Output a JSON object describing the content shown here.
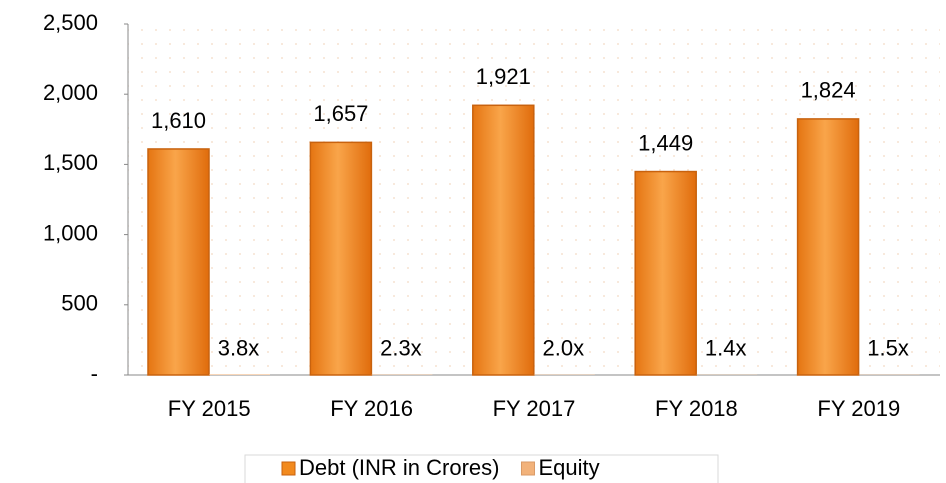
{
  "chart_data": {
    "type": "bar",
    "categories": [
      "FY 2015",
      "FY 2016",
      "FY 2017",
      "FY 2018",
      "FY 2019"
    ],
    "series": [
      {
        "name": "Debt (INR in Crores)",
        "color": "#f28a1e",
        "values": [
          1610,
          1657,
          1921,
          1449,
          1824
        ],
        "value_labels": [
          "1,610",
          "1,657",
          "1,921",
          "1,449",
          "1,824"
        ]
      },
      {
        "name": "Equity",
        "color": "#f2b27a",
        "values": [
          3.8,
          2.3,
          2.0,
          1.4,
          1.5
        ],
        "value_labels": [
          "3.8x",
          "2.3x",
          "2.0x",
          "1.4x",
          "1.5x"
        ]
      }
    ],
    "ylim": [
      0,
      2500
    ],
    "yticks": [
      {
        "value": 0,
        "label": "-"
      },
      500,
      {
        "value": 1000,
        "label": "1,000"
      },
      {
        "value": 1500,
        "label": "1,500"
      },
      {
        "value": 2000,
        "label": "2,000"
      },
      {
        "value": 2500,
        "label": "2,500"
      }
    ],
    "grid": true,
    "legend": "bottom"
  }
}
